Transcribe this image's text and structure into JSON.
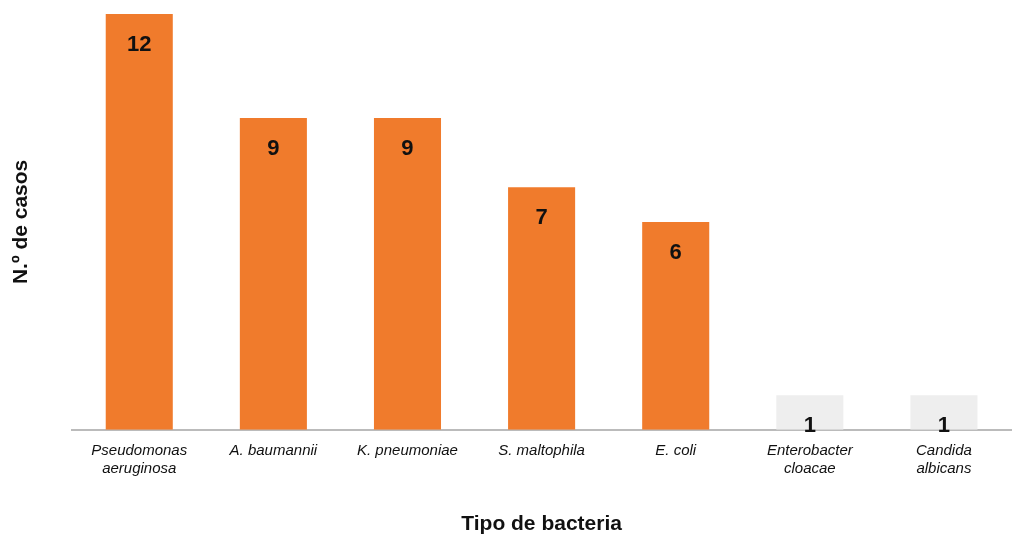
{
  "chart_data": {
    "type": "bar",
    "xlabel": "Tipo de bacteria",
    "ylabel": "N.º de casos",
    "categories": [
      "Pseudomonas\naeruginosa",
      "A. baumannii",
      "K. pneumoniae",
      "S. maltophila",
      "E. coli",
      "Enterobacter\ncloacae",
      "Candida\nalbicans"
    ],
    "values": [
      12,
      9,
      9,
      7,
      6,
      1,
      1
    ],
    "colors": [
      "#f07b2c",
      "#f07b2c",
      "#f07b2c",
      "#f07b2c",
      "#f07b2c",
      "#eeeeee",
      "#eeeeee"
    ],
    "data_labels": true,
    "grid": false,
    "legend": false
  }
}
